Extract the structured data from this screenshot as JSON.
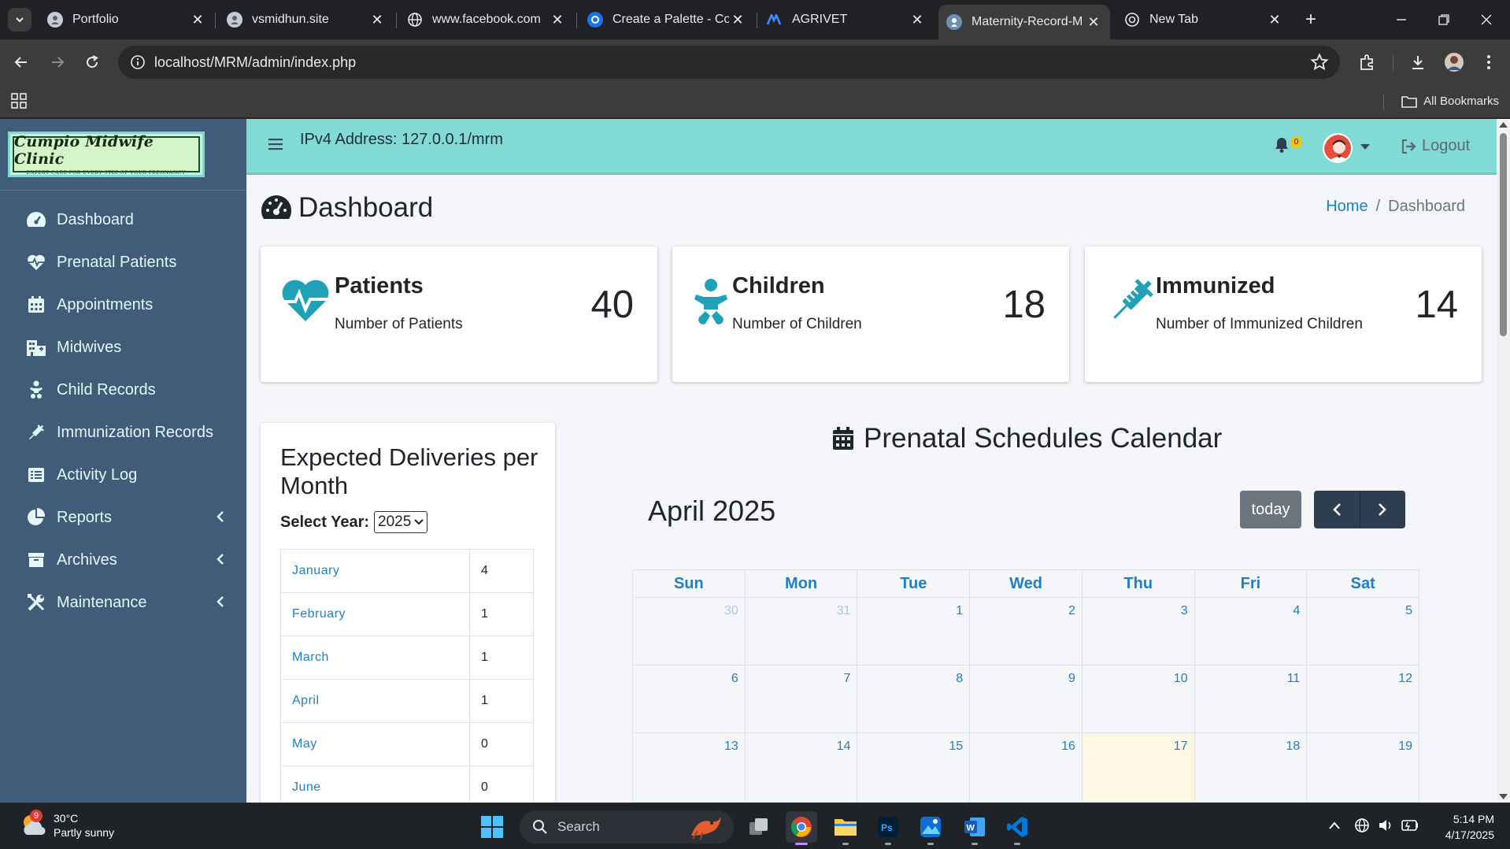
{
  "browser": {
    "tabs": [
      {
        "title": "Portfolio"
      },
      {
        "title": "vsmidhun.site"
      },
      {
        "title": "www.facebook.com"
      },
      {
        "title": "Create a Palette - Co"
      },
      {
        "title": "AGRIVET"
      },
      {
        "title": "Maternity-Record-M"
      },
      {
        "title": "New Tab"
      }
    ],
    "url": "localhost/MRM/admin/index.php",
    "bookmarks_label": "All Bookmarks"
  },
  "sidebar": {
    "brand_title": "Cumpio Midwife Clinic",
    "brand_tagline": "EXPERT CARE FOR EVERY STEP OF YOUR PREGNANCY",
    "items": [
      {
        "label": "Dashboard"
      },
      {
        "label": "Prenatal Patients"
      },
      {
        "label": "Appointments"
      },
      {
        "label": "Midwives"
      },
      {
        "label": "Child Records"
      },
      {
        "label": "Immunization Records"
      },
      {
        "label": "Activity Log"
      },
      {
        "label": "Reports"
      },
      {
        "label": "Archives"
      },
      {
        "label": "Maintenance"
      }
    ]
  },
  "topnav": {
    "ip_text": "IPv4 Address: 127.0.0.1/mrm",
    "notification_count": "0",
    "logout_label": "Logout"
  },
  "page": {
    "title": "Dashboard",
    "breadcrumb_home": "Home",
    "breadcrumb_sep": "/",
    "breadcrumb_current": "Dashboard"
  },
  "stats": [
    {
      "title": "Patients",
      "subtitle": "Number of Patients",
      "value": "40"
    },
    {
      "title": "Children",
      "subtitle": "Number of Children",
      "value": "18"
    },
    {
      "title": "Immunized",
      "subtitle": "Number of Immunized Children",
      "value": "14"
    }
  ],
  "deliveries": {
    "title": "Expected Deliveries per Month",
    "year_label": "Select Year:",
    "selected_year": "2025",
    "rows": [
      {
        "month": "January",
        "count": "4"
      },
      {
        "month": "February",
        "count": "1"
      },
      {
        "month": "March",
        "count": "1"
      },
      {
        "month": "April",
        "count": "1"
      },
      {
        "month": "May",
        "count": "0"
      },
      {
        "month": "June",
        "count": "0"
      }
    ]
  },
  "calendar": {
    "title": "Prenatal Schedules Calendar",
    "month_label": "April 2025",
    "today_label": "today",
    "weekdays": [
      "Sun",
      "Mon",
      "Tue",
      "Wed",
      "Thu",
      "Fri",
      "Sat"
    ],
    "weeks": [
      [
        "30",
        "31",
        "1",
        "2",
        "3",
        "4",
        "5"
      ],
      [
        "6",
        "7",
        "8",
        "9",
        "10",
        "11",
        "12"
      ],
      [
        "13",
        "14",
        "15",
        "16",
        "17",
        "18",
        "19"
      ]
    ],
    "today_date": "17"
  },
  "taskbar": {
    "temperature": "30°C",
    "condition": "Partly sunny",
    "weather_badge": "9",
    "search_label": "Search",
    "time": "5:14 PM",
    "date": "4/17/2025"
  },
  "colors": {
    "sidebar_bg": "#405c78",
    "topnav_bg": "#82dad4",
    "accent_teal": "#1fa2b8",
    "link_blue": "#1f7fc9"
  }
}
